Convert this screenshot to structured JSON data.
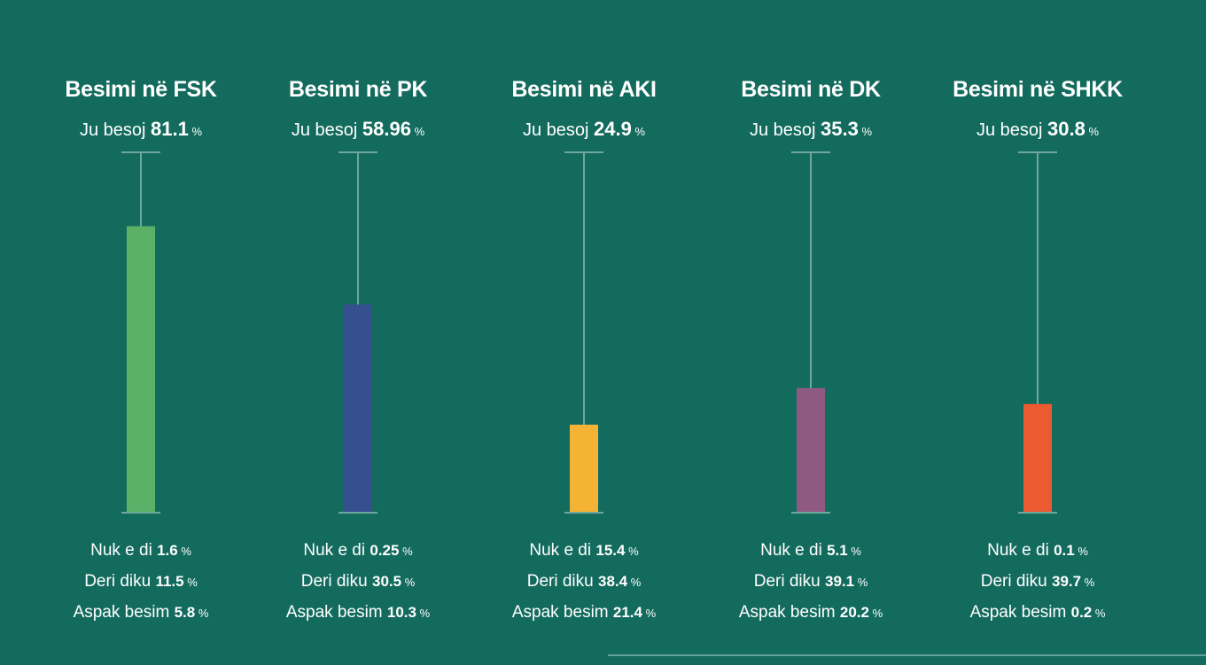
{
  "chart_data": {
    "type": "bar",
    "ylim": [
      0,
      100
    ],
    "grid": false,
    "legend": "none",
    "percent_symbol": "%",
    "trust_label": "Ju besoj",
    "bottom_labels": [
      "Nuk e di",
      "Deri diku",
      "Aspak besim"
    ],
    "panels": [
      {
        "title": "Besimi në FSK",
        "trust_value": "81.1",
        "value": 81.1,
        "color": "#5bb167",
        "stats": [
          "1.6",
          "11.5",
          "5.8"
        ]
      },
      {
        "title": "Besimi në PK",
        "trust_value": "58.96",
        "value": 58.96,
        "color": "#36508f",
        "stats": [
          "0.25",
          "30.5",
          "10.3"
        ]
      },
      {
        "title": "Besimi në AKI",
        "trust_value": "24.9",
        "value": 24.9,
        "color": "#f5b335",
        "stats": [
          "15.4",
          "38.4",
          "21.4"
        ]
      },
      {
        "title": "Besimi në DK",
        "trust_value": "35.3",
        "value": 35.3,
        "color": "#8e5a84",
        "stats": [
          "5.1",
          "39.1",
          "20.2"
        ]
      },
      {
        "title": "Besimi në SHKK",
        "trust_value": "30.8",
        "value": 30.8,
        "color": "#ec5a32",
        "stats": [
          "0.1",
          "39.7",
          "0.2"
        ]
      }
    ]
  }
}
